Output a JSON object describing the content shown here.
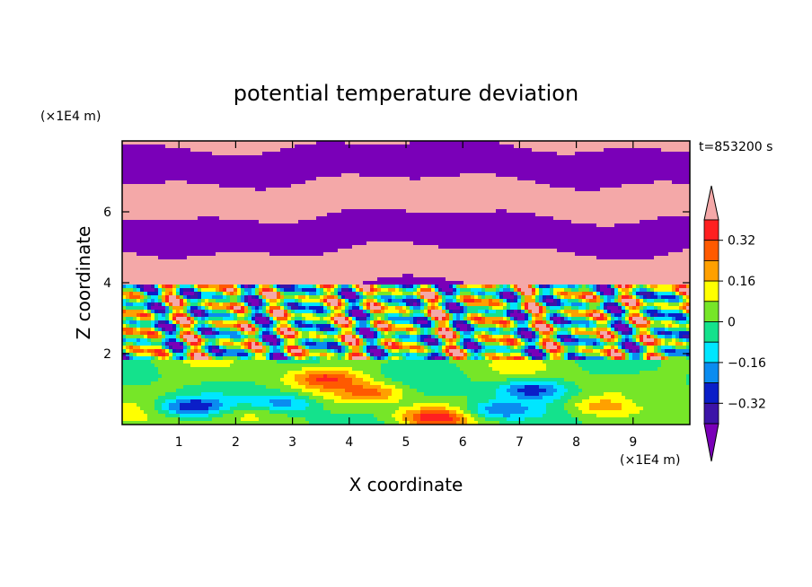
{
  "chart_data": {
    "type": "heatmap",
    "title": "potential temperature deviation",
    "time_label": "t=853200 s",
    "xlabel": "X coordinate",
    "ylabel": "Z coordinate",
    "x_unit": "(×1E4 m)",
    "y_unit": "(×1E4 m)",
    "xlim": [
      0,
      10
    ],
    "ylim": [
      0,
      8
    ],
    "x_ticks": [
      "1",
      "2",
      "3",
      "4",
      "5",
      "6",
      "7",
      "8",
      "9"
    ],
    "y_ticks": [
      "2",
      "4",
      "6"
    ],
    "colorbar": {
      "levels": [
        -0.4,
        -0.32,
        -0.24,
        -0.16,
        -0.08,
        0,
        0.08,
        0.16,
        0.24,
        0.32,
        0.4
      ],
      "tick_labels": [
        "0.32",
        "0.16",
        "0",
        "−0.16",
        "−0.32"
      ],
      "tick_values": [
        0.32,
        0.16,
        0,
        -0.16,
        -0.32
      ],
      "colors": [
        "#7a00b8",
        "#3c14a8",
        "#0a1ec8",
        "#0a8cf0",
        "#00e6ff",
        "#14e28c",
        "#76e628",
        "#ffff00",
        "#ffa000",
        "#ff5a00",
        "#ff2020",
        "#f4a8a8"
      ],
      "extend": "both"
    },
    "regions": {
      "lower_layer_top_z": 1.8,
      "mixed_band_z": [
        1.8,
        4.0
      ],
      "upper_band_z": [
        4.0,
        8.0
      ]
    }
  }
}
